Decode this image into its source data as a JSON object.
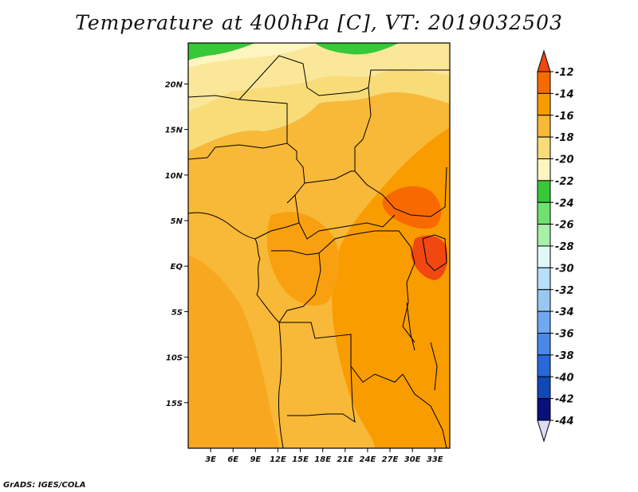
{
  "title": "Temperature at 400hPa [C], VT: 2019032503",
  "credit": "GrADS: IGES/COLA",
  "map": {
    "lon_range": [
      0,
      35
    ],
    "lat_range": [
      -20,
      24.5
    ],
    "lon_ticks": [
      {
        "v": 3,
        "label": "3E"
      },
      {
        "v": 6,
        "label": "6E"
      },
      {
        "v": 9,
        "label": "9E"
      },
      {
        "v": 12,
        "label": "12E"
      },
      {
        "v": 15,
        "label": "15E"
      },
      {
        "v": 18,
        "label": "18E"
      },
      {
        "v": 21,
        "label": "21E"
      },
      {
        "v": 24,
        "label": "24E"
      },
      {
        "v": 27,
        "label": "27E"
      },
      {
        "v": 30,
        "label": "30E"
      },
      {
        "v": 33,
        "label": "33E"
      }
    ],
    "lat_ticks": [
      {
        "v": 20,
        "label": "20N"
      },
      {
        "v": 15,
        "label": "15N"
      },
      {
        "v": 10,
        "label": "10N"
      },
      {
        "v": 5,
        "label": "5N"
      },
      {
        "v": 0,
        "label": "EQ"
      },
      {
        "v": -5,
        "label": "5S"
      },
      {
        "v": -10,
        "label": "10S"
      },
      {
        "v": -15,
        "label": "15S"
      }
    ]
  },
  "colorbar": {
    "levels": [
      "-12",
      "-14",
      "-16",
      "-18",
      "-20",
      "-22",
      "-24",
      "-26",
      "-28",
      "-30",
      "-32",
      "-34",
      "-36",
      "-38",
      "-40",
      "-42",
      "-44"
    ],
    "colors": [
      "#f04810",
      "#f86a00",
      "#f89c00",
      "#f8b838",
      "#f8dc78",
      "#fff5c0",
      "#38c838",
      "#70e070",
      "#a8f0a8",
      "#e0f8f8",
      "#b8e0f8",
      "#98c8f0",
      "#70a8f0",
      "#4888e8",
      "#2868d8",
      "#1048b8",
      "#08107a",
      "#dcdcf8"
    ]
  }
}
